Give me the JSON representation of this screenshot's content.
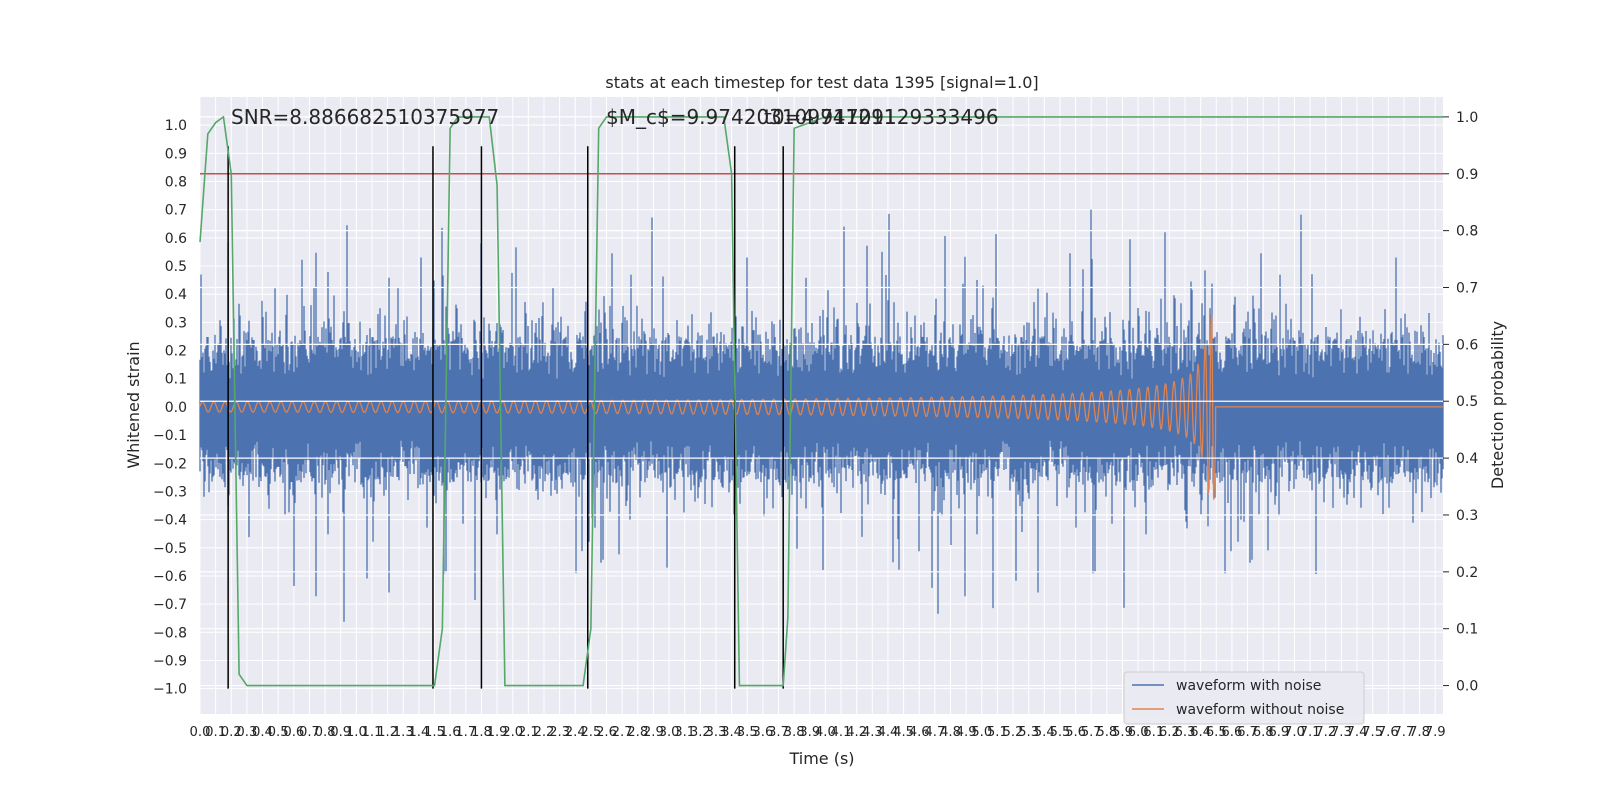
{
  "chart_data": {
    "type": "line",
    "title": "stats at each timestep for test data 1395 [signal=1.0]",
    "xlabel": "Time (s)",
    "ylabel": "Whitened strain",
    "y2label": "Detection probability",
    "xlim": [
      0.0,
      7.95
    ],
    "ylim": [
      -1.09,
      1.1
    ],
    "y2lim": [
      -0.05,
      1.035
    ],
    "x_ticks": [
      "0.0",
      "0.1",
      "0.2",
      "0.3",
      "0.4",
      "0.5",
      "0.6",
      "0.7",
      "0.8",
      "0.9",
      "1.0",
      "1.1",
      "1.2",
      "1.3",
      "1.4",
      "1.5",
      "1.6",
      "1.7",
      "1.8",
      "1.9",
      "2.0",
      "2.1",
      "2.2",
      "2.3",
      "2.4",
      "2.5",
      "2.6",
      "2.7",
      "2.8",
      "2.9",
      "3.0",
      "3.1",
      "3.2",
      "3.3",
      "3.4",
      "3.5",
      "3.6",
      "3.7",
      "3.8",
      "3.9",
      "4.0",
      "4.1",
      "4.2",
      "4.3",
      "4.4",
      "4.5",
      "4.6",
      "4.7",
      "4.8",
      "4.9",
      "5.0",
      "5.1",
      "5.2",
      "5.3",
      "5.4",
      "5.5",
      "5.6",
      "5.7",
      "5.8",
      "5.9",
      "6.0",
      "6.1",
      "6.2",
      "6.3",
      "6.4",
      "6.5",
      "6.6",
      "6.7",
      "6.8",
      "6.9",
      "7.0",
      "7.1",
      "7.2",
      "7.3",
      "7.4",
      "7.5",
      "7.6",
      "7.7",
      "7.8",
      "7.9"
    ],
    "y_ticks": [
      "1.0",
      "0.9",
      "0.8",
      "0.7",
      "0.6",
      "0.5",
      "0.4",
      "0.3",
      "0.2",
      "0.1",
      "0.0",
      "−0.1",
      "−0.2",
      "−0.3",
      "−0.4",
      "−0.5",
      "−0.6",
      "−0.7",
      "−0.8",
      "−0.9",
      "−1.0"
    ],
    "y2_ticks": [
      "1.0",
      "0.9",
      "0.8",
      "0.7",
      "0.6",
      "0.5",
      "0.4",
      "0.3",
      "0.2",
      "0.1",
      "0.0"
    ],
    "threshold": 0.9,
    "detection_times": [
      0.18,
      1.49,
      1.8,
      2.48,
      3.42,
      3.73
    ],
    "annotations": [
      "SNR=8.886682510375977",
      "$M_c$=9.974203109741211",
      "t0=4.91709129333496"
    ],
    "series": [
      {
        "name": "waveform with noise",
        "color": "#4c72b0",
        "noise_envelope": {
          "typical_abs": 0.3,
          "peak_max": 0.96,
          "peak_min": -1.0
        }
      },
      {
        "name": "waveform without noise",
        "color": "#dd8452",
        "merger_time": 6.49,
        "inspiral_amplitude_start": 0.018,
        "peak_amplitude": [
          -0.35,
          0.29
        ]
      },
      {
        "name": "detection probability",
        "color": "#55a868",
        "x": [
          0.0,
          0.05,
          0.1,
          0.15,
          0.2,
          0.25,
          0.3,
          0.4,
          0.5,
          0.6,
          0.7,
          0.8,
          0.9,
          1.0,
          1.1,
          1.2,
          1.3,
          1.4,
          1.45,
          1.5,
          1.55,
          1.6,
          1.65,
          1.7,
          1.75,
          1.8,
          1.85,
          1.9,
          1.95,
          2.0,
          2.1,
          2.2,
          2.3,
          2.35,
          2.4,
          2.45,
          2.5,
          2.55,
          2.6,
          2.65,
          2.7,
          2.8,
          2.9,
          3.0,
          3.1,
          3.2,
          3.3,
          3.35,
          3.4,
          3.45,
          3.5,
          3.55,
          3.6,
          3.65,
          3.7,
          3.73,
          3.76,
          3.8,
          4.0,
          4.5,
          5.0,
          5.5,
          6.0,
          6.5,
          7.0,
          7.5,
          7.95
        ],
        "y": [
          0.78,
          0.97,
          0.99,
          1.0,
          0.9,
          0.02,
          0.0,
          0.0,
          0.0,
          0.0,
          0.0,
          0.0,
          0.0,
          0.0,
          0.0,
          0.0,
          0.0,
          0.0,
          0.0,
          0.0,
          0.1,
          0.98,
          1.0,
          1.0,
          1.0,
          1.0,
          1.0,
          0.88,
          0.0,
          0.0,
          0.0,
          0.0,
          0.0,
          0.0,
          0.0,
          0.0,
          0.1,
          0.98,
          1.0,
          1.0,
          1.0,
          1.0,
          1.0,
          1.0,
          1.0,
          1.0,
          1.0,
          1.0,
          0.9,
          0.0,
          0.0,
          0.0,
          0.0,
          0.0,
          0.0,
          0.0,
          0.12,
          0.98,
          1.0,
          1.0,
          1.0,
          1.0,
          1.0,
          1.0,
          1.0,
          1.0,
          1.0
        ]
      }
    ],
    "legend": {
      "placement": "lower-right",
      "entries": [
        "waveform with noise",
        "waveform without noise"
      ]
    },
    "colors": {
      "background": "#eaeaf2",
      "grid": "#ffffff",
      "threshold": "#c44e52",
      "vlines": "#000000"
    }
  }
}
